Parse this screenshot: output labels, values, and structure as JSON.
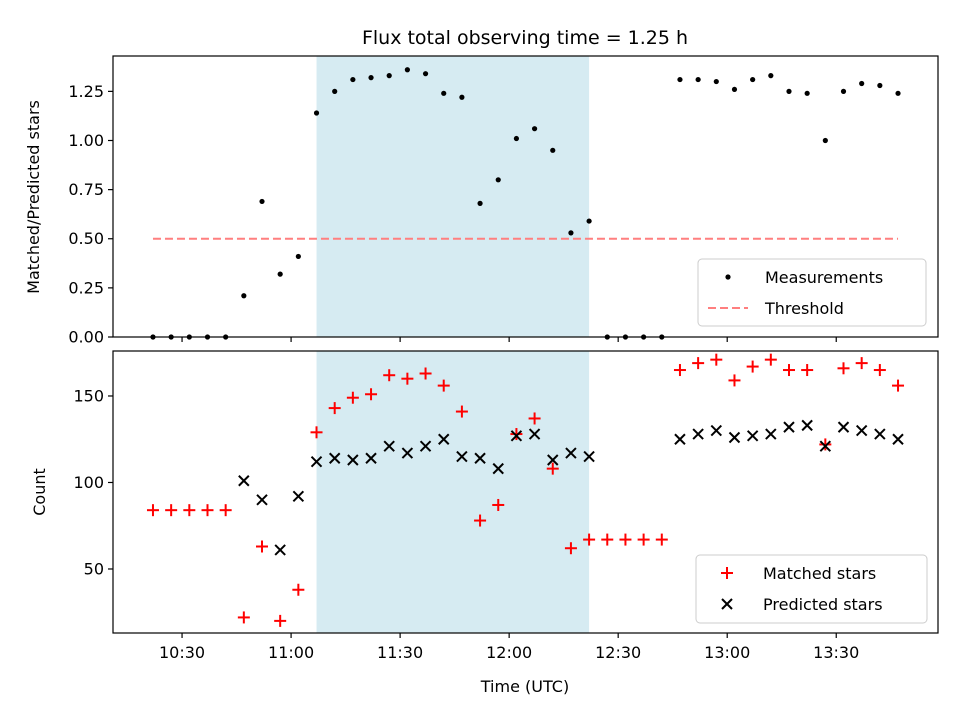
{
  "chart_data": [
    {
      "type": "scatter",
      "title": "Flux total observing time = 1.25 h",
      "xlabel": "",
      "ylabel": "Matched/Predicted stars",
      "ylim": [
        0.0,
        1.43
      ],
      "yticks": [
        0.0,
        0.25,
        0.5,
        0.75,
        1.0,
        1.25
      ],
      "ytick_labels": [
        "0.00",
        "0.25",
        "0.50",
        "0.75",
        "1.00",
        "1.25"
      ],
      "shaded_span": {
        "start": "11:07",
        "end": "12:22",
        "color": "#add8e6"
      },
      "legend_position": "lower-right",
      "series": [
        {
          "name": "Measurements",
          "marker": "dot",
          "color": "#000000",
          "x": [
            "10:22",
            "10:27",
            "10:32",
            "10:37",
            "10:42",
            "10:47",
            "10:52",
            "10:57",
            "11:02",
            "11:07",
            "11:12",
            "11:17",
            "11:22",
            "11:27",
            "11:32",
            "11:37",
            "11:42",
            "11:47",
            "11:52",
            "11:57",
            "12:02",
            "12:07",
            "12:12",
            "12:17",
            "12:22",
            "12:27",
            "12:32",
            "12:37",
            "12:42",
            "12:47",
            "12:52",
            "12:57",
            "13:02",
            "13:07",
            "13:12",
            "13:17",
            "13:22",
            "13:27",
            "13:32",
            "13:37",
            "13:42",
            "13:47"
          ],
          "y": [
            0.0,
            0.0,
            0.0,
            0.0,
            0.0,
            0.21,
            0.69,
            0.32,
            0.41,
            1.14,
            1.25,
            1.31,
            1.32,
            1.33,
            1.36,
            1.34,
            1.24,
            1.22,
            0.68,
            0.8,
            1.01,
            1.06,
            0.95,
            0.53,
            0.59,
            0.0,
            0.0,
            0.0,
            0.0,
            1.31,
            1.31,
            1.3,
            1.26,
            1.31,
            1.33,
            1.25,
            1.24,
            1.0,
            1.25,
            1.29,
            1.28,
            1.24
          ]
        },
        {
          "name": "Threshold",
          "marker": "dashed-line",
          "color": "#ff7f7f",
          "x": [
            "10:22",
            "13:47"
          ],
          "y": [
            0.5,
            0.5
          ]
        }
      ]
    },
    {
      "type": "scatter",
      "title": "",
      "xlabel": "Time (UTC)",
      "ylabel": "Count",
      "ylim": [
        13,
        176
      ],
      "yticks": [
        50,
        100,
        150
      ],
      "ytick_labels": [
        "50",
        "100",
        "150"
      ],
      "xticks": [
        "10:30",
        "11:00",
        "11:30",
        "12:00",
        "12:30",
        "13:00",
        "13:30"
      ],
      "shaded_span": {
        "start": "11:07",
        "end": "12:22",
        "color": "#add8e6"
      },
      "legend_position": "lower-right",
      "series": [
        {
          "name": "Matched stars",
          "marker": "plus",
          "color": "#ff0000",
          "x": [
            "10:22",
            "10:27",
            "10:32",
            "10:37",
            "10:42",
            "10:47",
            "10:52",
            "10:57",
            "11:02",
            "11:07",
            "11:12",
            "11:17",
            "11:22",
            "11:27",
            "11:32",
            "11:37",
            "11:42",
            "11:47",
            "11:52",
            "11:57",
            "12:02",
            "12:07",
            "12:12",
            "12:17",
            "12:22",
            "12:27",
            "12:32",
            "12:37",
            "12:42",
            "12:47",
            "12:52",
            "12:57",
            "13:02",
            "13:07",
            "13:12",
            "13:17",
            "13:22",
            "13:27",
            "13:32",
            "13:37",
            "13:42",
            "13:47"
          ],
          "y": [
            84,
            84,
            84,
            84,
            84,
            22,
            63,
            20,
            38,
            129,
            143,
            149,
            151,
            162,
            160,
            163,
            156,
            141,
            78,
            87,
            128,
            137,
            108,
            62,
            67,
            67,
            67,
            67,
            67,
            165,
            169,
            171,
            159,
            167,
            171,
            165,
            165,
            122,
            166,
            169,
            165,
            156
          ]
        },
        {
          "name": "Predicted stars",
          "marker": "x",
          "color": "#000000",
          "x": [
            "10:47",
            "10:52",
            "10:57",
            "11:02",
            "11:07",
            "11:12",
            "11:17",
            "11:22",
            "11:27",
            "11:32",
            "11:37",
            "11:42",
            "11:47",
            "11:52",
            "11:57",
            "12:02",
            "12:07",
            "12:12",
            "12:17",
            "12:22",
            "12:47",
            "12:52",
            "12:57",
            "13:02",
            "13:07",
            "13:12",
            "13:17",
            "13:22",
            "13:27",
            "13:32",
            "13:37",
            "13:42",
            "13:47"
          ],
          "y": [
            101,
            90,
            61,
            92,
            112,
            114,
            113,
            114,
            121,
            117,
            121,
            125,
            115,
            114,
            108,
            127,
            128,
            113,
            117,
            115,
            125,
            128,
            130,
            126,
            127,
            128,
            132,
            133,
            121,
            132,
            130,
            128,
            125
          ]
        }
      ]
    }
  ]
}
